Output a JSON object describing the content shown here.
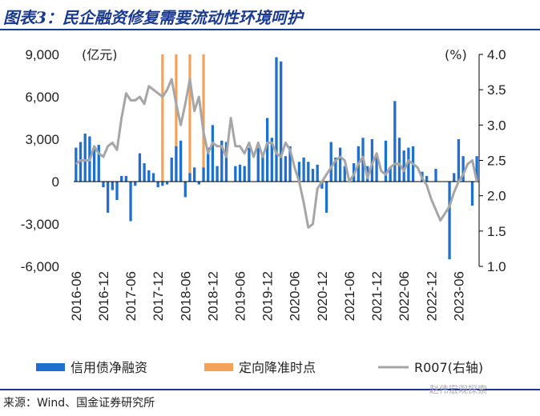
{
  "title": "图表3：民企融资修复需要流动性环境呵护",
  "source": "来源：Wind、国金证券研究所",
  "watermark": "赵伟宏观探索",
  "colors": {
    "bar": "#1f6fce",
    "marker": "#f4a259",
    "line": "#a6a6a6",
    "title": "#1a3a8f"
  },
  "chart_data": {
    "type": "bar",
    "left_unit": "(亿元)",
    "right_unit": "(%)",
    "ylim_left": [
      -6000,
      9000
    ],
    "yticks_left": [
      "9,000",
      "6,000",
      "3,000",
      "0",
      "-3,000",
      "-6,000"
    ],
    "ytick_values_left": [
      9000,
      6000,
      3000,
      0,
      -3000,
      -6000
    ],
    "ylim_right": [
      1.0,
      4.0
    ],
    "yticks_right": [
      "4.0",
      "3.5",
      "3.0",
      "2.5",
      "2.0",
      "1.5",
      "1.0"
    ],
    "ytick_values_right": [
      4.0,
      3.5,
      3.0,
      2.5,
      2.0,
      1.5,
      1.0
    ],
    "x_start": "2016-06",
    "x_tick_labels": [
      "2016-06",
      "2016-12",
      "2017-06",
      "2017-12",
      "2018-06",
      "2018-12",
      "2019-06",
      "2019-12",
      "2020-06",
      "2020-12",
      "2021-06",
      "2021-12",
      "2022-06",
      "2022-12",
      "2023-06"
    ],
    "series": [
      {
        "name": "信用债净融资",
        "kind": "bar",
        "values": [
          2400,
          2800,
          3400,
          3200,
          2400,
          2600,
          -400,
          -2200,
          -600,
          -1300,
          400,
          400,
          -2800,
          -300,
          2000,
          1300,
          800,
          600,
          -400,
          -300,
          -200,
          1700,
          2500,
          2900,
          -1100,
          600,
          1000,
          -200,
          1000,
          2400,
          4000,
          1100,
          2900,
          2800,
          0,
          1100,
          1200,
          1100,
          2400,
          0,
          2400,
          2000,
          4500,
          3100,
          8800,
          8500,
          1800,
          2500,
          0,
          1400,
          1700,
          1400,
          900,
          1200,
          -500,
          -2200,
          2800,
          1700,
          2400,
          1100,
          0,
          1300,
          2500,
          3100,
          1100,
          3000,
          1900,
          0,
          2900,
          1000,
          5700,
          3100,
          2200,
          2400,
          2500,
          0,
          700,
          400,
          0,
          900,
          0,
          0,
          -5500,
          600,
          3000,
          1800,
          0,
          -1700,
          1800
        ]
      },
      {
        "name": "定向降准时点",
        "kind": "marker",
        "dates": [
          "2018-01",
          "2018-04",
          "2018-07",
          "2018-10"
        ]
      },
      {
        "name": "R007(右轴)",
        "kind": "line",
        "values": [
          2.45,
          2.5,
          2.5,
          2.5,
          2.7,
          2.6,
          2.55,
          2.7,
          2.75,
          2.65,
          3.1,
          3.45,
          3.35,
          3.35,
          3.4,
          3.3,
          3.55,
          3.5,
          3.45,
          3.4,
          3.5,
          3.65,
          3.3,
          3.0,
          3.3,
          3.65,
          3.2,
          3.4,
          2.9,
          2.6,
          2.75,
          2.7,
          2.7,
          2.55,
          3.1,
          2.7,
          2.7,
          2.6,
          2.75,
          2.55,
          2.75,
          2.55,
          2.75,
          2.75,
          2.6,
          2.55,
          2.75,
          2.65,
          2.4,
          2.2,
          1.9,
          1.55,
          1.6,
          2.1,
          2.2,
          2.3,
          2.4,
          2.5,
          2.55,
          2.5,
          2.2,
          2.3,
          2.45,
          2.55,
          2.25,
          2.45,
          2.6,
          2.35,
          2.3,
          2.4,
          2.45,
          2.45,
          2.35,
          2.5,
          2.45,
          2.4,
          2.25,
          2.15,
          1.95,
          1.8,
          1.65,
          1.75,
          1.85,
          2.05,
          2.2,
          2.3,
          2.45,
          2.5,
          2.2
        ]
      }
    ]
  }
}
